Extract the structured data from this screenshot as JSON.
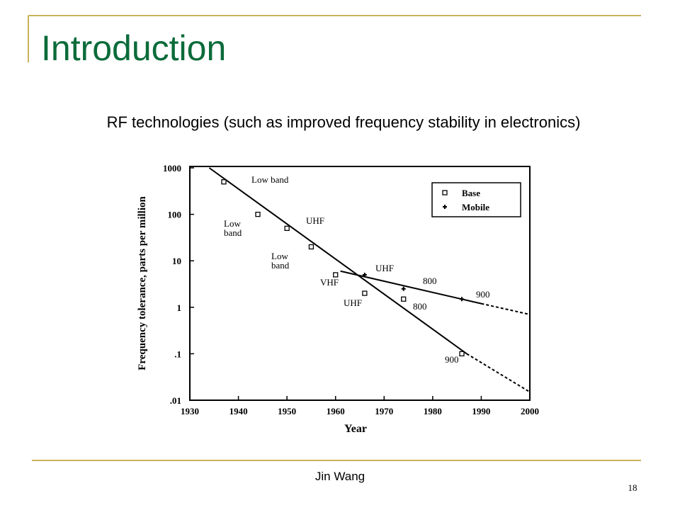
{
  "title": "Introduction",
  "subtitle": "RF technologies (such as improved frequency stability in electronics)",
  "footer": "Jin Wang",
  "page_number": "18",
  "chart_data": {
    "type": "scatter",
    "xlabel": "Year",
    "ylabel": "Frequency tolerance, parts per million",
    "xlim": [
      1930,
      2000
    ],
    "xticks": [
      1930,
      1940,
      1950,
      1960,
      1970,
      1980,
      1990,
      2000
    ],
    "ylim": [
      0.01,
      1000
    ],
    "yticks": [
      1000,
      100,
      10,
      1,
      {
        "value": 0.1,
        "label": ".1"
      },
      {
        "value": 0.01,
        "label": ".01"
      }
    ],
    "log_y": true,
    "legend": "upper right",
    "series": [
      {
        "name": "Base",
        "marker": "square",
        "color": "#000000",
        "x": [
          1937,
          1944,
          1950,
          1955,
          1960,
          1966,
          1974,
          1986
        ],
        "values": [
          500,
          100,
          50,
          20,
          5,
          2,
          1.5,
          0.1
        ]
      },
      {
        "name": "Mobile",
        "marker": "star",
        "color": "#000000",
        "x": [
          1966,
          1974,
          1986
        ],
        "values": [
          5,
          2.5,
          1.5
        ]
      }
    ],
    "lines": [
      {
        "style": "solid",
        "x": [
          1934,
          1987
        ],
        "values": [
          1000,
          0.1
        ]
      },
      {
        "style": "dashed",
        "x": [
          1987,
          2000
        ],
        "values": [
          0.1,
          0.015
        ]
      },
      {
        "style": "solid",
        "x": [
          1961,
          1990
        ],
        "values": [
          6,
          1.2
        ]
      },
      {
        "style": "dashed",
        "x": [
          1990,
          2000
        ],
        "values": [
          1.2,
          0.7
        ]
      }
    ],
    "annotations": [
      "Low band",
      "Low band",
      "UHF",
      "Low band",
      "VHF",
      "UHF",
      "UHF",
      "800",
      "800",
      "900",
      "900"
    ]
  }
}
